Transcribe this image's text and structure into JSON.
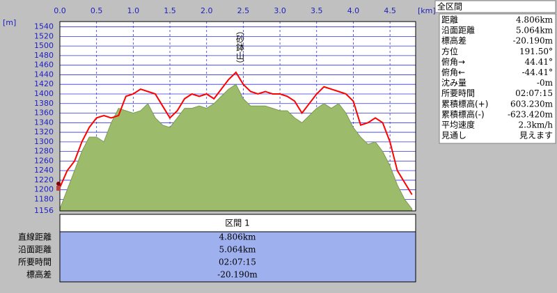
{
  "chart_data": {
    "type": "line",
    "x_unit": "[km]",
    "y_unit": "[m]",
    "annotation": "（砂鉢山）",
    "x": [
      0,
      0.1,
      0.2,
      0.3,
      0.4,
      0.5,
      0.6,
      0.7,
      0.8,
      0.9,
      1.0,
      1.1,
      1.2,
      1.3,
      1.4,
      1.5,
      1.6,
      1.7,
      1.8,
      1.9,
      2.0,
      2.1,
      2.2,
      2.3,
      2.4,
      2.5,
      2.6,
      2.7,
      2.8,
      2.9,
      3.0,
      3.1,
      3.2,
      3.3,
      3.4,
      3.5,
      3.6,
      3.7,
      3.8,
      3.9,
      4.0,
      4.1,
      4.2,
      4.3,
      4.4,
      4.5,
      4.6,
      4.7,
      4.8
    ],
    "series": [
      {
        "style": "area",
        "color": "#9cbc6c",
        "values": [
          1160,
          1200,
          1240,
          1280,
          1310,
          1310,
          1300,
          1340,
          1370,
          1365,
          1360,
          1365,
          1380,
          1350,
          1335,
          1330,
          1350,
          1370,
          1370,
          1375,
          1370,
          1380,
          1395,
          1410,
          1420,
          1390,
          1375,
          1375,
          1375,
          1370,
          1365,
          1365,
          1350,
          1340,
          1355,
          1370,
          1380,
          1370,
          1380,
          1360,
          1330,
          1310,
          1295,
          1300,
          1280,
          1250,
          1210,
          1180,
          1160
        ]
      },
      {
        "style": "line",
        "color": "#ff0000",
        "values": [
          1205,
          1240,
          1260,
          1300,
          1330,
          1350,
          1355,
          1350,
          1355,
          1395,
          1400,
          1410,
          1405,
          1400,
          1375,
          1350,
          1365,
          1390,
          1400,
          1395,
          1400,
          1390,
          1410,
          1430,
          1445,
          1420,
          1405,
          1400,
          1405,
          1400,
          1400,
          1395,
          1385,
          1360,
          1380,
          1400,
          1415,
          1410,
          1405,
          1400,
          1385,
          1335,
          1340,
          1350,
          1340,
          1300,
          1240,
          1215,
          1190
        ]
      }
    ],
    "xlim": [
      0,
      4.85
    ],
    "ylim": [
      1156,
      1551
    ],
    "xticks": [
      {
        "value": 0,
        "label": "0.0"
      },
      0.5,
      {
        "value": 1,
        "label": "1.0"
      },
      1.5,
      {
        "value": 2,
        "label": "2.0"
      },
      2.5,
      {
        "value": 3,
        "label": "3.0"
      },
      3.5,
      {
        "value": 4,
        "label": "4.0"
      },
      4.5
    ],
    "yticks": [
      1156,
      1180,
      1200,
      1220,
      1240,
      1260,
      1280,
      1300,
      1320,
      1340,
      1360,
      1380,
      1400,
      1420,
      1440,
      1460,
      1480,
      1500,
      1520,
      1540
    ],
    "grid": true
  },
  "panel": {
    "title": "全区間",
    "rows": [
      [
        "距離",
        "4.806km"
      ],
      [
        "沿面距離",
        "5.064km"
      ],
      [
        "標高差",
        "-20.190m"
      ],
      [
        "方位",
        "191.50°"
      ],
      [
        "俯角→",
        "44.41°"
      ],
      [
        "俯角←",
        "-44.41°"
      ],
      [
        "沈み量",
        "-0m"
      ],
      [
        "所要時間",
        "02:07:15"
      ],
      [
        "累積標高(+)",
        "603.230m"
      ],
      [
        "累積標高(-)",
        "-623.420m"
      ],
      [
        "平均速度",
        "2.3km/h"
      ],
      [
        "見通し",
        "見えます"
      ]
    ]
  },
  "section": {
    "title": "区間 1",
    "rows": [
      [
        "直線距離",
        "4.806km"
      ],
      [
        "沿面距離",
        "5.064km"
      ],
      [
        "所要時間",
        "02:07:15"
      ],
      [
        "標高差",
        "-20.190m"
      ]
    ]
  }
}
